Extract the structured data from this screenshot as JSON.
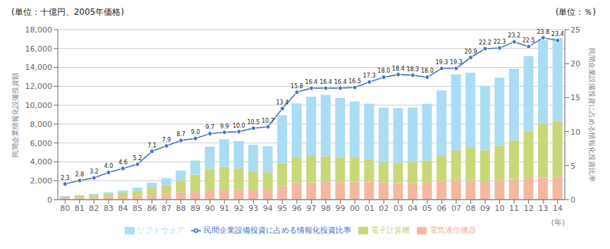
{
  "chart_data": {
    "type": "bar",
    "stacked": true,
    "grid": true,
    "legend": "bottom",
    "data_labels": true,
    "annotations": [
      "(単位：十億円、2005年価格)",
      "(単位：％)"
    ],
    "xlabel": "(年)",
    "ylabel": "民間企業情報化設備投資額",
    "y2label": "民間企業設備投資に占める情報化投資比率",
    "categories": [
      "80",
      "81",
      "82",
      "83",
      "84",
      "85",
      "86",
      "87",
      "88",
      "89",
      "90",
      "91",
      "92",
      "93",
      "94",
      "95",
      "96",
      "97",
      "98",
      "99",
      "00",
      "01",
      "02",
      "03",
      "04",
      "05",
      "06",
      "07",
      "08",
      "09",
      "10",
      "11",
      "12",
      "13",
      "14"
    ],
    "ylim": [
      0,
      18000
    ],
    "yticks": [
      0,
      {
        "value": 2000,
        "label": "2,000"
      },
      {
        "value": 4000,
        "label": "4,000"
      },
      {
        "value": 6000,
        "label": "6,000"
      },
      {
        "value": 8000,
        "label": "8,000"
      },
      {
        "value": 10000,
        "label": "10,000"
      },
      {
        "value": 12000,
        "label": "12,000"
      },
      {
        "value": 14000,
        "label": "14,000"
      },
      {
        "value": 16000,
        "label": "16,000"
      },
      {
        "value": 18000,
        "label": "18,000"
      }
    ],
    "y2lim": [
      0,
      25
    ],
    "y2ticks": [
      0,
      5,
      10,
      15,
      20,
      25
    ],
    "series": [
      {
        "name": "電気通信機器",
        "type": "bar",
        "color": "#f4b8a0",
        "values": [
          150,
          180,
          210,
          250,
          310,
          380,
          500,
          620,
          780,
          900,
          1050,
          1100,
          1100,
          1050,
          1050,
          1450,
          1650,
          1800,
          1850,
          1850,
          1900,
          1900,
          1750,
          1750,
          1750,
          1800,
          1950,
          2050,
          2050,
          1950,
          2050,
          2150,
          2250,
          2350,
          2400
        ]
      },
      {
        "name": "電子計算機",
        "type": "bar",
        "color": "#c8d878",
        "values": [
          150,
          200,
          270,
          360,
          450,
          560,
          750,
          900,
          1250,
          1750,
          2200,
          2350,
          2200,
          2000,
          1850,
          2400,
          2750,
          2900,
          2750,
          2650,
          2500,
          2400,
          2200,
          2150,
          2250,
          2350,
          2750,
          3200,
          3400,
          3300,
          3650,
          4150,
          4950,
          5750,
          5950
        ]
      },
      {
        "name": "ソフトウェア",
        "type": "bar",
        "color": "#aadcf4",
        "values": [
          80,
          100,
          130,
          160,
          210,
          320,
          550,
          750,
          1050,
          1500,
          2350,
          2950,
          2900,
          2750,
          2750,
          5100,
          5800,
          6200,
          6500,
          6250,
          6000,
          5850,
          5800,
          5800,
          5750,
          6000,
          6850,
          8000,
          8000,
          6800,
          7200,
          7550,
          8000,
          8800,
          8750
        ]
      },
      {
        "name": "民間企業設備投資に占める情報化投資比率",
        "type": "line",
        "axis": "y2",
        "color": "#4472c4",
        "marker": "circle",
        "line_style": "solid",
        "values": [
          2.3,
          2.8,
          3.2,
          4.0,
          4.6,
          5.2,
          7.1,
          7.9,
          8.7,
          9.0,
          9.7,
          9.9,
          10.0,
          10.5,
          10.7,
          13.4,
          15.8,
          16.4,
          16.4,
          16.4,
          16.5,
          17.3,
          18.0,
          18.4,
          18.3,
          18.0,
          19.3,
          19.3,
          20.9,
          22.2,
          22.3,
          23.2,
          22.5,
          23.8,
          23.4
        ],
        "value_labels": [
          "2.3",
          "2.8",
          "3.2",
          "4.0",
          "4.6",
          "5.2",
          "7.1",
          "7.9",
          "8.7",
          "9.0",
          "9.7",
          "9.9",
          "10.0",
          "10.5",
          "10.7",
          "13.4",
          "15.8",
          "16.4",
          "16.4",
          "16.4",
          "16.5",
          "17.3",
          "18.0",
          "18.4",
          "18.3",
          "18.0",
          "19.3",
          "19.3",
          "20.9",
          "22.2",
          "22.3",
          "23.2",
          "22.5",
          "23.8",
          "23.4"
        ]
      }
    ]
  }
}
